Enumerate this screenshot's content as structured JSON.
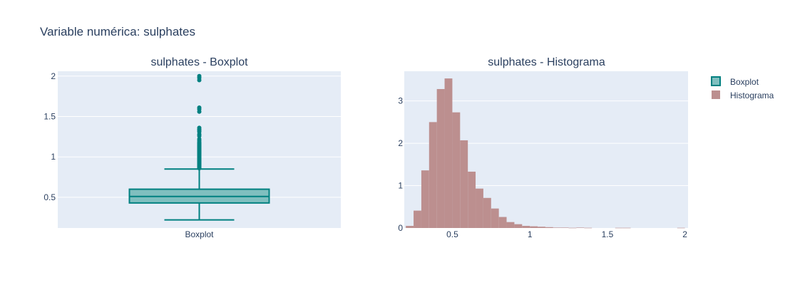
{
  "page_title": "Variable numérica: sulphates",
  "colors": {
    "plot_bg": "#e5ecf6",
    "grid": "#ffffff",
    "text": "#2a3f5f",
    "box_line": "#008080",
    "box_fill": "#80bfbf",
    "hist_fill": "#bc8f8f"
  },
  "legend": {
    "placement": "right",
    "items": [
      {
        "label": "Boxplot",
        "swatch": "box"
      },
      {
        "label": "Histograma",
        "swatch": "hist"
      }
    ]
  },
  "chart_data": [
    {
      "type": "box",
      "title": "sulphates - Boxplot",
      "category": "Boxplot",
      "ylim": [
        0.12,
        2.06
      ],
      "yticks": [
        0.5,
        1,
        1.5,
        2
      ],
      "ytick_labels": [
        "0.5",
        "1",
        "1.5",
        "2"
      ],
      "grid": true,
      "stats": {
        "min": 0.22,
        "q1": 0.43,
        "median": 0.51,
        "q3": 0.6,
        "upper_fence": 0.85
      },
      "outliers": [
        0.86,
        0.87,
        0.88,
        0.89,
        0.9,
        0.91,
        0.92,
        0.93,
        0.94,
        0.95,
        0.96,
        0.97,
        0.98,
        0.99,
        1.0,
        1.01,
        1.02,
        1.03,
        1.04,
        1.05,
        1.06,
        1.07,
        1.08,
        1.09,
        1.1,
        1.11,
        1.12,
        1.13,
        1.14,
        1.15,
        1.16,
        1.17,
        1.18,
        1.2,
        1.22,
        1.26,
        1.28,
        1.31,
        1.33,
        1.34,
        1.36,
        1.56,
        1.59,
        1.61,
        1.95,
        1.98,
        2.0
      ]
    },
    {
      "type": "histogram",
      "title": "sulphates - Histograma",
      "xlim": [
        0.19,
        2.02
      ],
      "ylim": [
        0,
        3.7
      ],
      "xticks": [
        0.5,
        1,
        1.5,
        2
      ],
      "xtick_labels": [
        "0.5",
        "1",
        "1.5",
        "2"
      ],
      "yticks": [
        0,
        1,
        2,
        3
      ],
      "ytick_labels": [
        "0",
        "1",
        "2",
        "3"
      ],
      "grid": true,
      "bin_width": 0.05,
      "bins": [
        [
          0.2,
          0.05
        ],
        [
          0.25,
          0.41
        ],
        [
          0.3,
          1.36
        ],
        [
          0.35,
          2.5
        ],
        [
          0.4,
          3.28
        ],
        [
          0.45,
          3.53
        ],
        [
          0.5,
          2.73
        ],
        [
          0.55,
          2.07
        ],
        [
          0.6,
          1.33
        ],
        [
          0.65,
          0.93
        ],
        [
          0.7,
          0.71
        ],
        [
          0.75,
          0.46
        ],
        [
          0.8,
          0.26
        ],
        [
          0.85,
          0.14
        ],
        [
          0.9,
          0.09
        ],
        [
          0.95,
          0.05
        ],
        [
          1.0,
          0.04
        ],
        [
          1.05,
          0.03
        ],
        [
          1.1,
          0.02
        ],
        [
          1.15,
          0.01
        ],
        [
          1.2,
          0.01
        ],
        [
          1.25,
          0.005
        ],
        [
          1.3,
          0.01
        ],
        [
          1.35,
          0.005
        ],
        [
          1.55,
          0.005
        ],
        [
          1.6,
          0.005
        ],
        [
          1.95,
          0.005
        ]
      ]
    }
  ]
}
